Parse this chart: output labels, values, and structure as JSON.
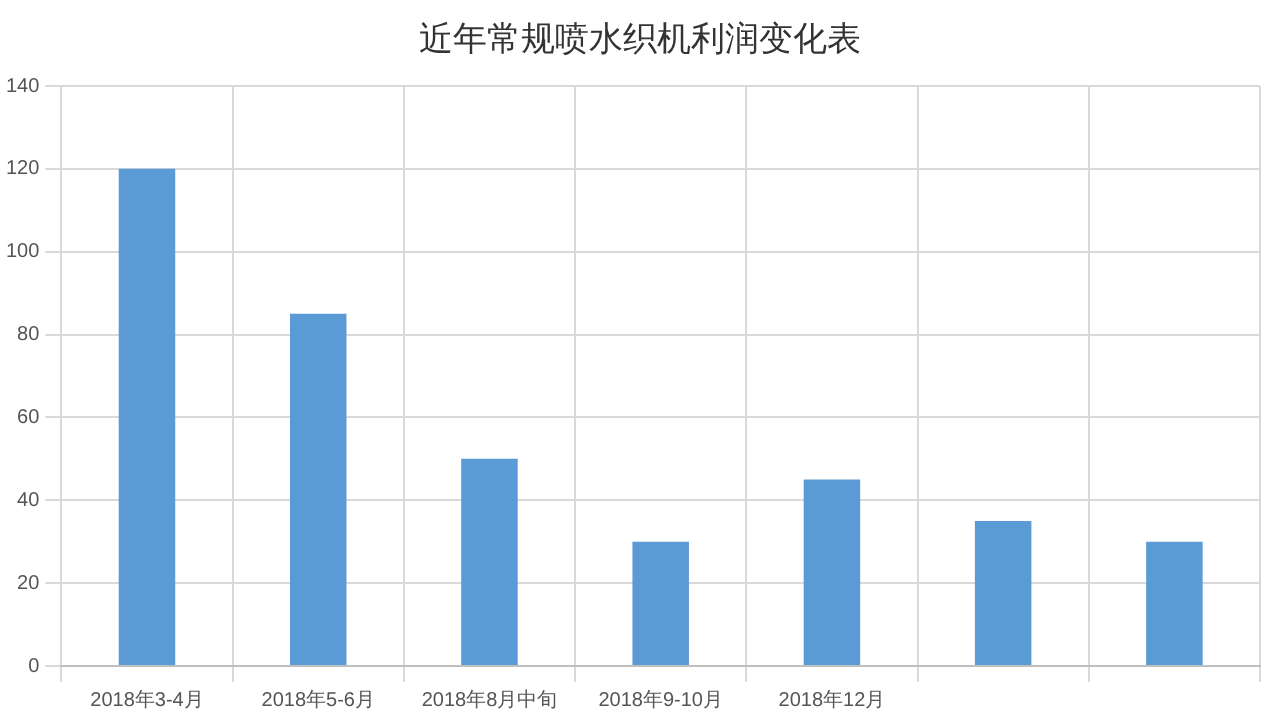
{
  "chart_data": {
    "type": "bar",
    "title": "近年常规喷水织机利润变化表",
    "categories": [
      "2018年3-4月",
      "2018年5-6月",
      "2018年8月中旬",
      "2018年9-10月",
      "2018年12月",
      null,
      null
    ],
    "values": [
      120,
      85,
      50,
      30,
      45,
      35,
      30
    ],
    "color": "#5b9bd5",
    "ylim": [
      0,
      140
    ],
    "yticks": [
      0,
      20,
      40,
      60,
      80,
      100,
      120,
      140
    ],
    "grid": true
  }
}
